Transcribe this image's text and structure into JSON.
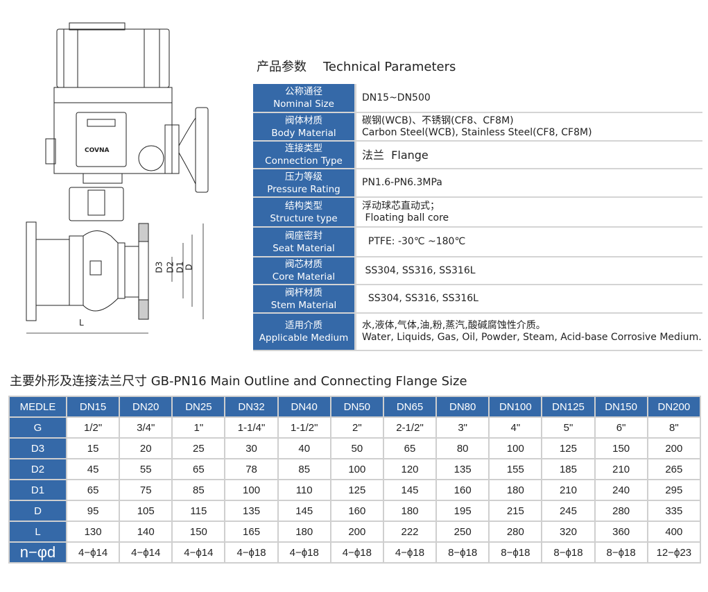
{
  "drawing": {
    "brand_label": "COVNA",
    "dimension_labels": [
      "D3",
      "D2",
      "D1",
      "D",
      "L"
    ]
  },
  "params": {
    "title_cn": "产品参数",
    "title_en": "Technical Parameters",
    "rows": [
      {
        "k_cn": "公称通径",
        "k_en": "Nominal Size",
        "v1": "DN15~DN500",
        "v2": ""
      },
      {
        "k_cn": "阀体材质",
        "k_en": "Body Material",
        "v1": "碳钢(WCB)、不锈钢(CF8、CF8M)",
        "v2": "Carbon Steel(WCB), Stainless Steel(CF8, CF8M)"
      },
      {
        "k_cn": "连接类型",
        "k_en": "Connection Type",
        "v1": "法兰  Flange",
        "v2": ""
      },
      {
        "k_cn": "压力等级",
        "k_en": "Pressure Rating",
        "v1": "PN1.6-PN6.3MPa",
        "v2": ""
      },
      {
        "k_cn": "结构类型",
        "k_en": "Structure type",
        "v1": "浮动球芯直动式；",
        "v2": " Floating ball core"
      },
      {
        "k_cn": "阀座密封",
        "k_en": "Seat Material",
        "v1": "  PTFE: -30℃ ~180℃",
        "v2": ""
      },
      {
        "k_cn": "阀芯材质",
        "k_en": "Core Material",
        "v1": " SS304, SS316, SS316L",
        "v2": ""
      },
      {
        "k_cn": "阀杆材质",
        "k_en": "Stem Material",
        "v1": "  SS304, SS316, SS316L",
        "v2": ""
      },
      {
        "k_cn": "适用介质",
        "k_en": "Applicable Medium",
        "v1": "水,液体,气体,油,粉,蒸汽,酸碱腐蚀性介质。",
        "v2": "Water, Liquids, Gas, Oil, Powder, Steam, Acid-base Corrosive Medium."
      }
    ]
  },
  "dims": {
    "title": "主要外形及连接法兰尺寸 GB-PN16  Main Outline and Connecting Flange Size",
    "header": [
      "MEDLE",
      "DN15",
      "DN20",
      "DN25",
      "DN32",
      "DN40",
      "DN50",
      "DN65",
      "DN80",
      "DN100",
      "DN125",
      "DN150",
      "DN200"
    ],
    "rows": [
      [
        "G",
        "1/2\"",
        "3/4\"",
        "1\"",
        "1-1/4\"",
        "1-1/2\"",
        "2\"",
        "2-1/2\"",
        "3\"",
        "4\"",
        "5\"",
        "6\"",
        "8\""
      ],
      [
        "D3",
        "15",
        "20",
        "25",
        "30",
        "40",
        "50",
        "65",
        "80",
        "100",
        "125",
        "150",
        "200"
      ],
      [
        "D2",
        "45",
        "55",
        "65",
        "78",
        "85",
        "100",
        "120",
        "135",
        "155",
        "185",
        "210",
        "265"
      ],
      [
        "D1",
        "65",
        "75",
        "85",
        "100",
        "110",
        "125",
        "145",
        "160",
        "180",
        "210",
        "240",
        "295"
      ],
      [
        "D",
        "95",
        "105",
        "115",
        "135",
        "145",
        "160",
        "180",
        "195",
        "215",
        "245",
        "280",
        "335"
      ],
      [
        "L",
        "130",
        "140",
        "150",
        "165",
        "180",
        "200",
        "222",
        "250",
        "280",
        "320",
        "360",
        "400"
      ],
      [
        "n−φd",
        "4−ϕ14",
        "4−ϕ14",
        "4−ϕ14",
        "4−ϕ18",
        "4−ϕ18",
        "4−ϕ18",
        "4−ϕ18",
        "8−ϕ18",
        "8−ϕ18",
        "8−ϕ18",
        "8−ϕ18",
        "12−ϕ23"
      ]
    ]
  },
  "colors": {
    "header_blue": "#3569a8",
    "border": "#d4d4d4"
  }
}
